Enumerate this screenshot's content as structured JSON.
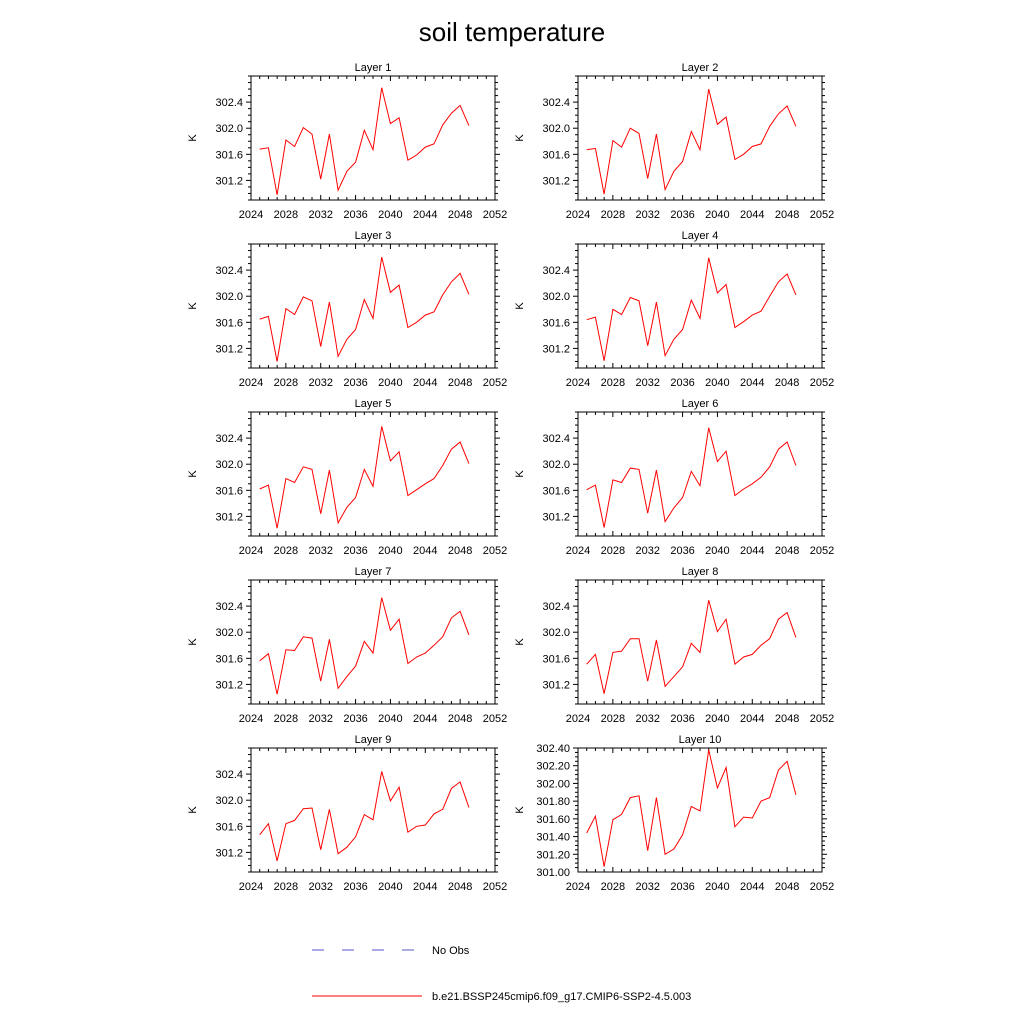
{
  "title": "soil temperature",
  "colors": {
    "model": "#ff0000",
    "obs": "#5555cc",
    "axis": "#000000"
  },
  "legend": {
    "obs_label": "No Obs",
    "model_label": "b.e21.BSSP245cmip6.f09_g17.CMIP6-SSP2-4.5.003"
  },
  "chart_data": [
    {
      "type": "line",
      "title": "Layer 1",
      "ylabel": "K",
      "xlim": [
        2024,
        2052
      ],
      "ylim": [
        300.9,
        302.8
      ],
      "xticks": [
        "2024",
        "2028",
        "2032",
        "2036",
        "2040",
        "2044",
        "2048",
        "2052"
      ],
      "yticks": [
        "301.2",
        "301.6",
        "302.0",
        "302.4"
      ],
      "series": [
        {
          "x": [
            2025,
            2026,
            2027,
            2028,
            2029,
            2030,
            2031,
            2032,
            2033,
            2034,
            2035,
            2036,
            2037,
            2038,
            2039,
            2040,
            2041,
            2042,
            2043,
            2044,
            2045,
            2046,
            2047,
            2048,
            2049
          ],
          "values": [
            301.68,
            301.7,
            300.98,
            301.82,
            301.72,
            302.01,
            301.91,
            301.22,
            301.91,
            301.05,
            301.34,
            301.48,
            301.97,
            301.67,
            302.62,
            302.07,
            302.16,
            301.51,
            301.59,
            301.71,
            301.76,
            302.05,
            302.23,
            302.35,
            302.04
          ]
        }
      ]
    },
    {
      "type": "line",
      "title": "Layer 2",
      "ylabel": "K",
      "xlim": [
        2024,
        2052
      ],
      "ylim": [
        300.9,
        302.8
      ],
      "xticks": [
        "2024",
        "2028",
        "2032",
        "2036",
        "2040",
        "2044",
        "2048",
        "2052"
      ],
      "yticks": [
        "301.2",
        "301.6",
        "302.0",
        "302.4"
      ],
      "series": [
        {
          "x": [
            2025,
            2026,
            2027,
            2028,
            2029,
            2030,
            2031,
            2032,
            2033,
            2034,
            2035,
            2036,
            2037,
            2038,
            2039,
            2040,
            2041,
            2042,
            2043,
            2044,
            2045,
            2046,
            2047,
            2048,
            2049
          ],
          "values": [
            301.67,
            301.69,
            300.99,
            301.81,
            301.71,
            302.0,
            301.92,
            301.23,
            301.91,
            301.06,
            301.34,
            301.49,
            301.95,
            301.67,
            302.6,
            302.06,
            302.17,
            301.52,
            301.6,
            301.72,
            301.76,
            302.03,
            302.22,
            302.34,
            302.03
          ]
        }
      ]
    },
    {
      "type": "line",
      "title": "Layer 3",
      "ylabel": "K",
      "xlim": [
        2024,
        2052
      ],
      "ylim": [
        300.9,
        302.8
      ],
      "xticks": [
        "2024",
        "2028",
        "2032",
        "2036",
        "2040",
        "2044",
        "2048",
        "2052"
      ],
      "yticks": [
        "301.2",
        "301.6",
        "302.0",
        "302.4"
      ],
      "series": [
        {
          "x": [
            2025,
            2026,
            2027,
            2028,
            2029,
            2030,
            2031,
            2032,
            2033,
            2034,
            2035,
            2036,
            2037,
            2038,
            2039,
            2040,
            2041,
            2042,
            2043,
            2044,
            2045,
            2046,
            2047,
            2048,
            2049
          ],
          "values": [
            301.65,
            301.69,
            301.0,
            301.81,
            301.72,
            301.99,
            301.93,
            301.23,
            301.91,
            301.08,
            301.34,
            301.49,
            301.95,
            301.66,
            302.6,
            302.06,
            302.17,
            301.52,
            301.6,
            301.71,
            301.76,
            302.02,
            302.22,
            302.35,
            302.03
          ]
        }
      ]
    },
    {
      "type": "line",
      "title": "Layer 4",
      "ylabel": "K",
      "xlim": [
        2024,
        2052
      ],
      "ylim": [
        300.9,
        302.8
      ],
      "xticks": [
        "2024",
        "2028",
        "2032",
        "2036",
        "2040",
        "2044",
        "2048",
        "2052"
      ],
      "yticks": [
        "301.2",
        "301.6",
        "302.0",
        "302.4"
      ],
      "series": [
        {
          "x": [
            2025,
            2026,
            2027,
            2028,
            2029,
            2030,
            2031,
            2032,
            2033,
            2034,
            2035,
            2036,
            2037,
            2038,
            2039,
            2040,
            2041,
            2042,
            2043,
            2044,
            2045,
            2046,
            2047,
            2048,
            2049
          ],
          "values": [
            301.64,
            301.68,
            301.01,
            301.8,
            301.72,
            301.98,
            301.93,
            301.24,
            301.91,
            301.09,
            301.34,
            301.49,
            301.94,
            301.66,
            302.59,
            302.05,
            302.18,
            301.52,
            301.61,
            301.71,
            301.77,
            302.0,
            302.22,
            302.34,
            302.02
          ]
        }
      ]
    },
    {
      "type": "line",
      "title": "Layer 5",
      "ylabel": "K",
      "xlim": [
        2024,
        2052
      ],
      "ylim": [
        300.9,
        302.8
      ],
      "xticks": [
        "2024",
        "2028",
        "2032",
        "2036",
        "2040",
        "2044",
        "2048",
        "2052"
      ],
      "yticks": [
        "301.2",
        "301.6",
        "302.0",
        "302.4"
      ],
      "series": [
        {
          "x": [
            2025,
            2026,
            2027,
            2028,
            2029,
            2030,
            2031,
            2032,
            2033,
            2034,
            2035,
            2036,
            2037,
            2038,
            2039,
            2040,
            2041,
            2042,
            2043,
            2044,
            2045,
            2046,
            2047,
            2048,
            2049
          ],
          "values": [
            301.62,
            301.68,
            301.02,
            301.78,
            301.72,
            301.96,
            301.92,
            301.24,
            301.91,
            301.1,
            301.34,
            301.49,
            301.92,
            301.66,
            302.58,
            302.05,
            302.19,
            301.52,
            301.61,
            301.7,
            301.78,
            301.98,
            302.23,
            302.34,
            302.01
          ]
        }
      ]
    },
    {
      "type": "line",
      "title": "Layer 6",
      "ylabel": "K",
      "xlim": [
        2024,
        2052
      ],
      "ylim": [
        300.9,
        302.8
      ],
      "xticks": [
        "2024",
        "2028",
        "2032",
        "2036",
        "2040",
        "2044",
        "2048",
        "2052"
      ],
      "yticks": [
        "301.2",
        "301.6",
        "302.0",
        "302.4"
      ],
      "series": [
        {
          "x": [
            2025,
            2026,
            2027,
            2028,
            2029,
            2030,
            2031,
            2032,
            2033,
            2034,
            2035,
            2036,
            2037,
            2038,
            2039,
            2040,
            2041,
            2042,
            2043,
            2044,
            2045,
            2046,
            2047,
            2048,
            2049
          ],
          "values": [
            301.61,
            301.68,
            301.03,
            301.76,
            301.72,
            301.94,
            301.92,
            301.25,
            301.91,
            301.12,
            301.33,
            301.49,
            301.89,
            301.67,
            302.56,
            302.04,
            302.2,
            301.52,
            301.62,
            301.7,
            301.8,
            301.96,
            302.23,
            302.34,
            301.98
          ]
        }
      ]
    },
    {
      "type": "line",
      "title": "Layer 7",
      "ylabel": "K",
      "xlim": [
        2024,
        2052
      ],
      "ylim": [
        300.9,
        302.8
      ],
      "xticks": [
        "2024",
        "2028",
        "2032",
        "2036",
        "2040",
        "2044",
        "2048",
        "2052"
      ],
      "yticks": [
        "301.2",
        "301.6",
        "302.0",
        "302.4"
      ],
      "series": [
        {
          "x": [
            2025,
            2026,
            2027,
            2028,
            2029,
            2030,
            2031,
            2032,
            2033,
            2034,
            2035,
            2036,
            2037,
            2038,
            2039,
            2040,
            2041,
            2042,
            2043,
            2044,
            2045,
            2046,
            2047,
            2048,
            2049
          ],
          "values": [
            301.56,
            301.67,
            301.05,
            301.73,
            301.72,
            301.93,
            301.91,
            301.25,
            301.89,
            301.14,
            301.32,
            301.48,
            301.86,
            301.68,
            302.53,
            302.03,
            302.2,
            301.52,
            301.62,
            301.68,
            301.8,
            301.93,
            302.22,
            302.32,
            301.96
          ]
        }
      ]
    },
    {
      "type": "line",
      "title": "Layer 8",
      "ylabel": "K",
      "xlim": [
        2024,
        2052
      ],
      "ylim": [
        300.9,
        302.8
      ],
      "xticks": [
        "2024",
        "2028",
        "2032",
        "2036",
        "2040",
        "2044",
        "2048",
        "2052"
      ],
      "yticks": [
        "301.2",
        "301.6",
        "302.0",
        "302.4"
      ],
      "series": [
        {
          "x": [
            2025,
            2026,
            2027,
            2028,
            2029,
            2030,
            2031,
            2032,
            2033,
            2034,
            2035,
            2036,
            2037,
            2038,
            2039,
            2040,
            2041,
            2042,
            2043,
            2044,
            2045,
            2046,
            2047,
            2048,
            2049
          ],
          "values": [
            301.51,
            301.66,
            301.06,
            301.69,
            301.71,
            301.9,
            301.9,
            301.25,
            301.88,
            301.17,
            301.32,
            301.47,
            301.83,
            301.69,
            302.49,
            302.01,
            302.2,
            301.51,
            301.62,
            301.66,
            301.8,
            301.9,
            302.2,
            302.3,
            301.92
          ]
        }
      ]
    },
    {
      "type": "line",
      "title": "Layer 9",
      "ylabel": "K",
      "xlim": [
        2024,
        2052
      ],
      "ylim": [
        300.9,
        302.8
      ],
      "xticks": [
        "2024",
        "2028",
        "2032",
        "2036",
        "2040",
        "2044",
        "2048",
        "2052"
      ],
      "yticks": [
        "301.2",
        "301.6",
        "302.0",
        "302.4"
      ],
      "series": [
        {
          "x": [
            2025,
            2026,
            2027,
            2028,
            2029,
            2030,
            2031,
            2032,
            2033,
            2034,
            2035,
            2036,
            2037,
            2038,
            2039,
            2040,
            2041,
            2042,
            2043,
            2044,
            2045,
            2046,
            2047,
            2048,
            2049
          ],
          "values": [
            301.47,
            301.64,
            301.07,
            301.64,
            301.69,
            301.87,
            301.88,
            301.24,
            301.86,
            301.18,
            301.28,
            301.44,
            301.78,
            301.7,
            302.44,
            301.99,
            302.2,
            301.51,
            301.6,
            301.62,
            301.79,
            301.86,
            302.18,
            302.28,
            301.89
          ]
        }
      ]
    },
    {
      "type": "line",
      "title": "Layer 10",
      "ylabel": "K",
      "xlim": [
        2024,
        2052
      ],
      "ylim": [
        301.0,
        302.4
      ],
      "xticks": [
        "2024",
        "2028",
        "2032",
        "2036",
        "2040",
        "2044",
        "2048",
        "2052"
      ],
      "yticks": [
        "301.00",
        "301.20",
        "301.40",
        "301.60",
        "301.80",
        "302.00",
        "302.20",
        "302.40"
      ],
      "series": [
        {
          "x": [
            2025,
            2026,
            2027,
            2028,
            2029,
            2030,
            2031,
            2032,
            2033,
            2034,
            2035,
            2036,
            2037,
            2038,
            2039,
            2040,
            2041,
            2042,
            2043,
            2044,
            2045,
            2046,
            2047,
            2048,
            2049
          ],
          "values": [
            301.44,
            301.63,
            301.06,
            301.59,
            301.65,
            301.84,
            301.86,
            301.24,
            301.84,
            301.2,
            301.26,
            301.42,
            301.74,
            301.69,
            302.38,
            301.95,
            302.18,
            301.51,
            301.62,
            301.61,
            301.8,
            301.84,
            302.15,
            302.25,
            301.87
          ]
        }
      ]
    }
  ]
}
